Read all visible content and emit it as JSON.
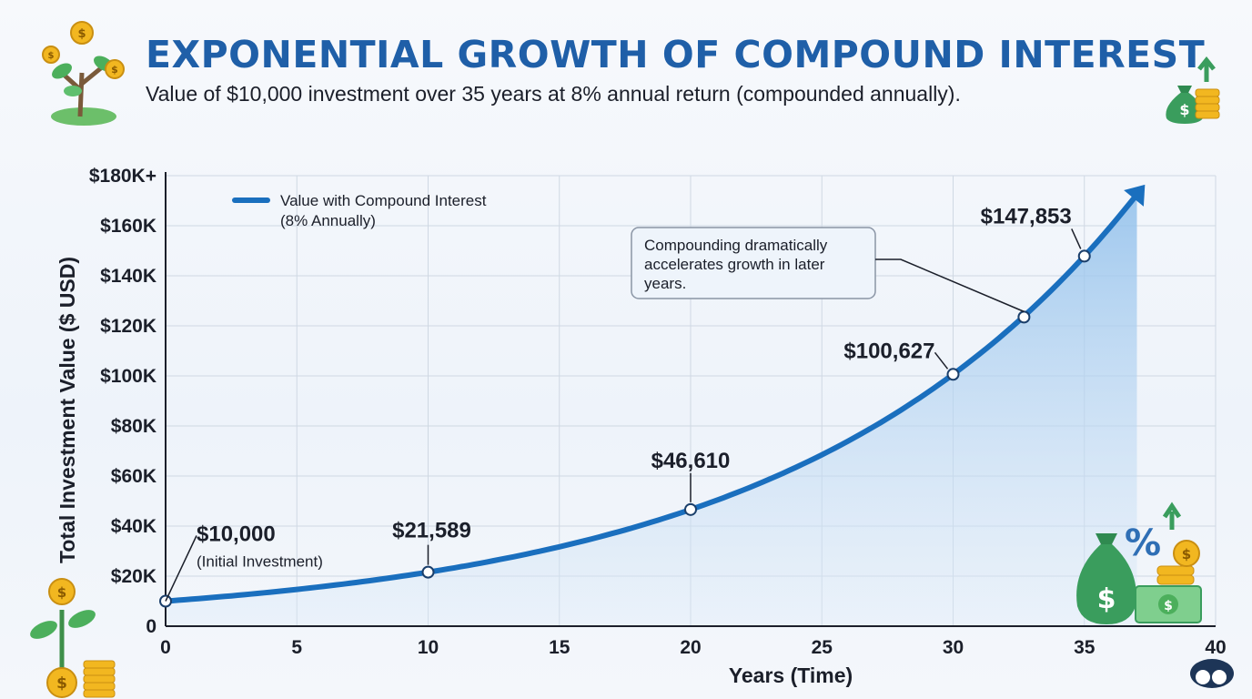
{
  "header": {
    "title": "EXPONENTIAL GROWTH OF COMPOUND INTEREST",
    "subtitle": "Value of $10,000 investment over 35 years at 8% annual return (compounded annually)."
  },
  "icons": {
    "top_left": "money-tree-icon",
    "top_right": "money-bag-growth-icon",
    "bottom_left": "coin-plant-icon",
    "bottom_right": "money-bag-percent-icon",
    "corner_logo": "cloud-logo-icon"
  },
  "colors": {
    "title": "#1f5fa8",
    "line": "#1a6fbe",
    "area": "#9cc7ee",
    "money_green": "#2e9e5b",
    "coin_gold": "#f2b720"
  },
  "chart_data": {
    "type": "area",
    "title": "",
    "xlabel": "Years (Time)",
    "ylabel": "Total Investment Value ($ USD)",
    "xlim": [
      0,
      40
    ],
    "ylim": [
      0,
      180000
    ],
    "x_ticks": [
      "0",
      "5",
      "10",
      "15",
      "20",
      "25",
      "30",
      "35",
      "40"
    ],
    "y_ticks": [
      "0",
      "$20K",
      "$40K",
      "$60K",
      "$80K",
      "$100K",
      "$120K",
      "$140K",
      "$160K",
      "$180K+"
    ],
    "grid": true,
    "legend_position": "top-left",
    "series": [
      {
        "name": "Value with Compound Interest",
        "name_line2": "(8% Annually)",
        "principal": 10000,
        "rate": 0.08,
        "x_range": [
          0,
          37
        ],
        "points": [
          {
            "x": 0,
            "y": 10000,
            "label": "$10,000",
            "sublabel": "(Initial Investment)"
          },
          {
            "x": 10,
            "y": 21589,
            "label": "$21,589"
          },
          {
            "x": 20,
            "y": 46610,
            "label": "$46,610"
          },
          {
            "x": 30,
            "y": 100627,
            "label": "$100,627"
          },
          {
            "x": 32.7,
            "y": 123500,
            "label": ""
          },
          {
            "x": 35,
            "y": 147853,
            "label": "$147,853"
          }
        ]
      }
    ],
    "annotation": {
      "lines": [
        "Compounding dramatically",
        "accelerates growth in later",
        "years."
      ]
    }
  }
}
